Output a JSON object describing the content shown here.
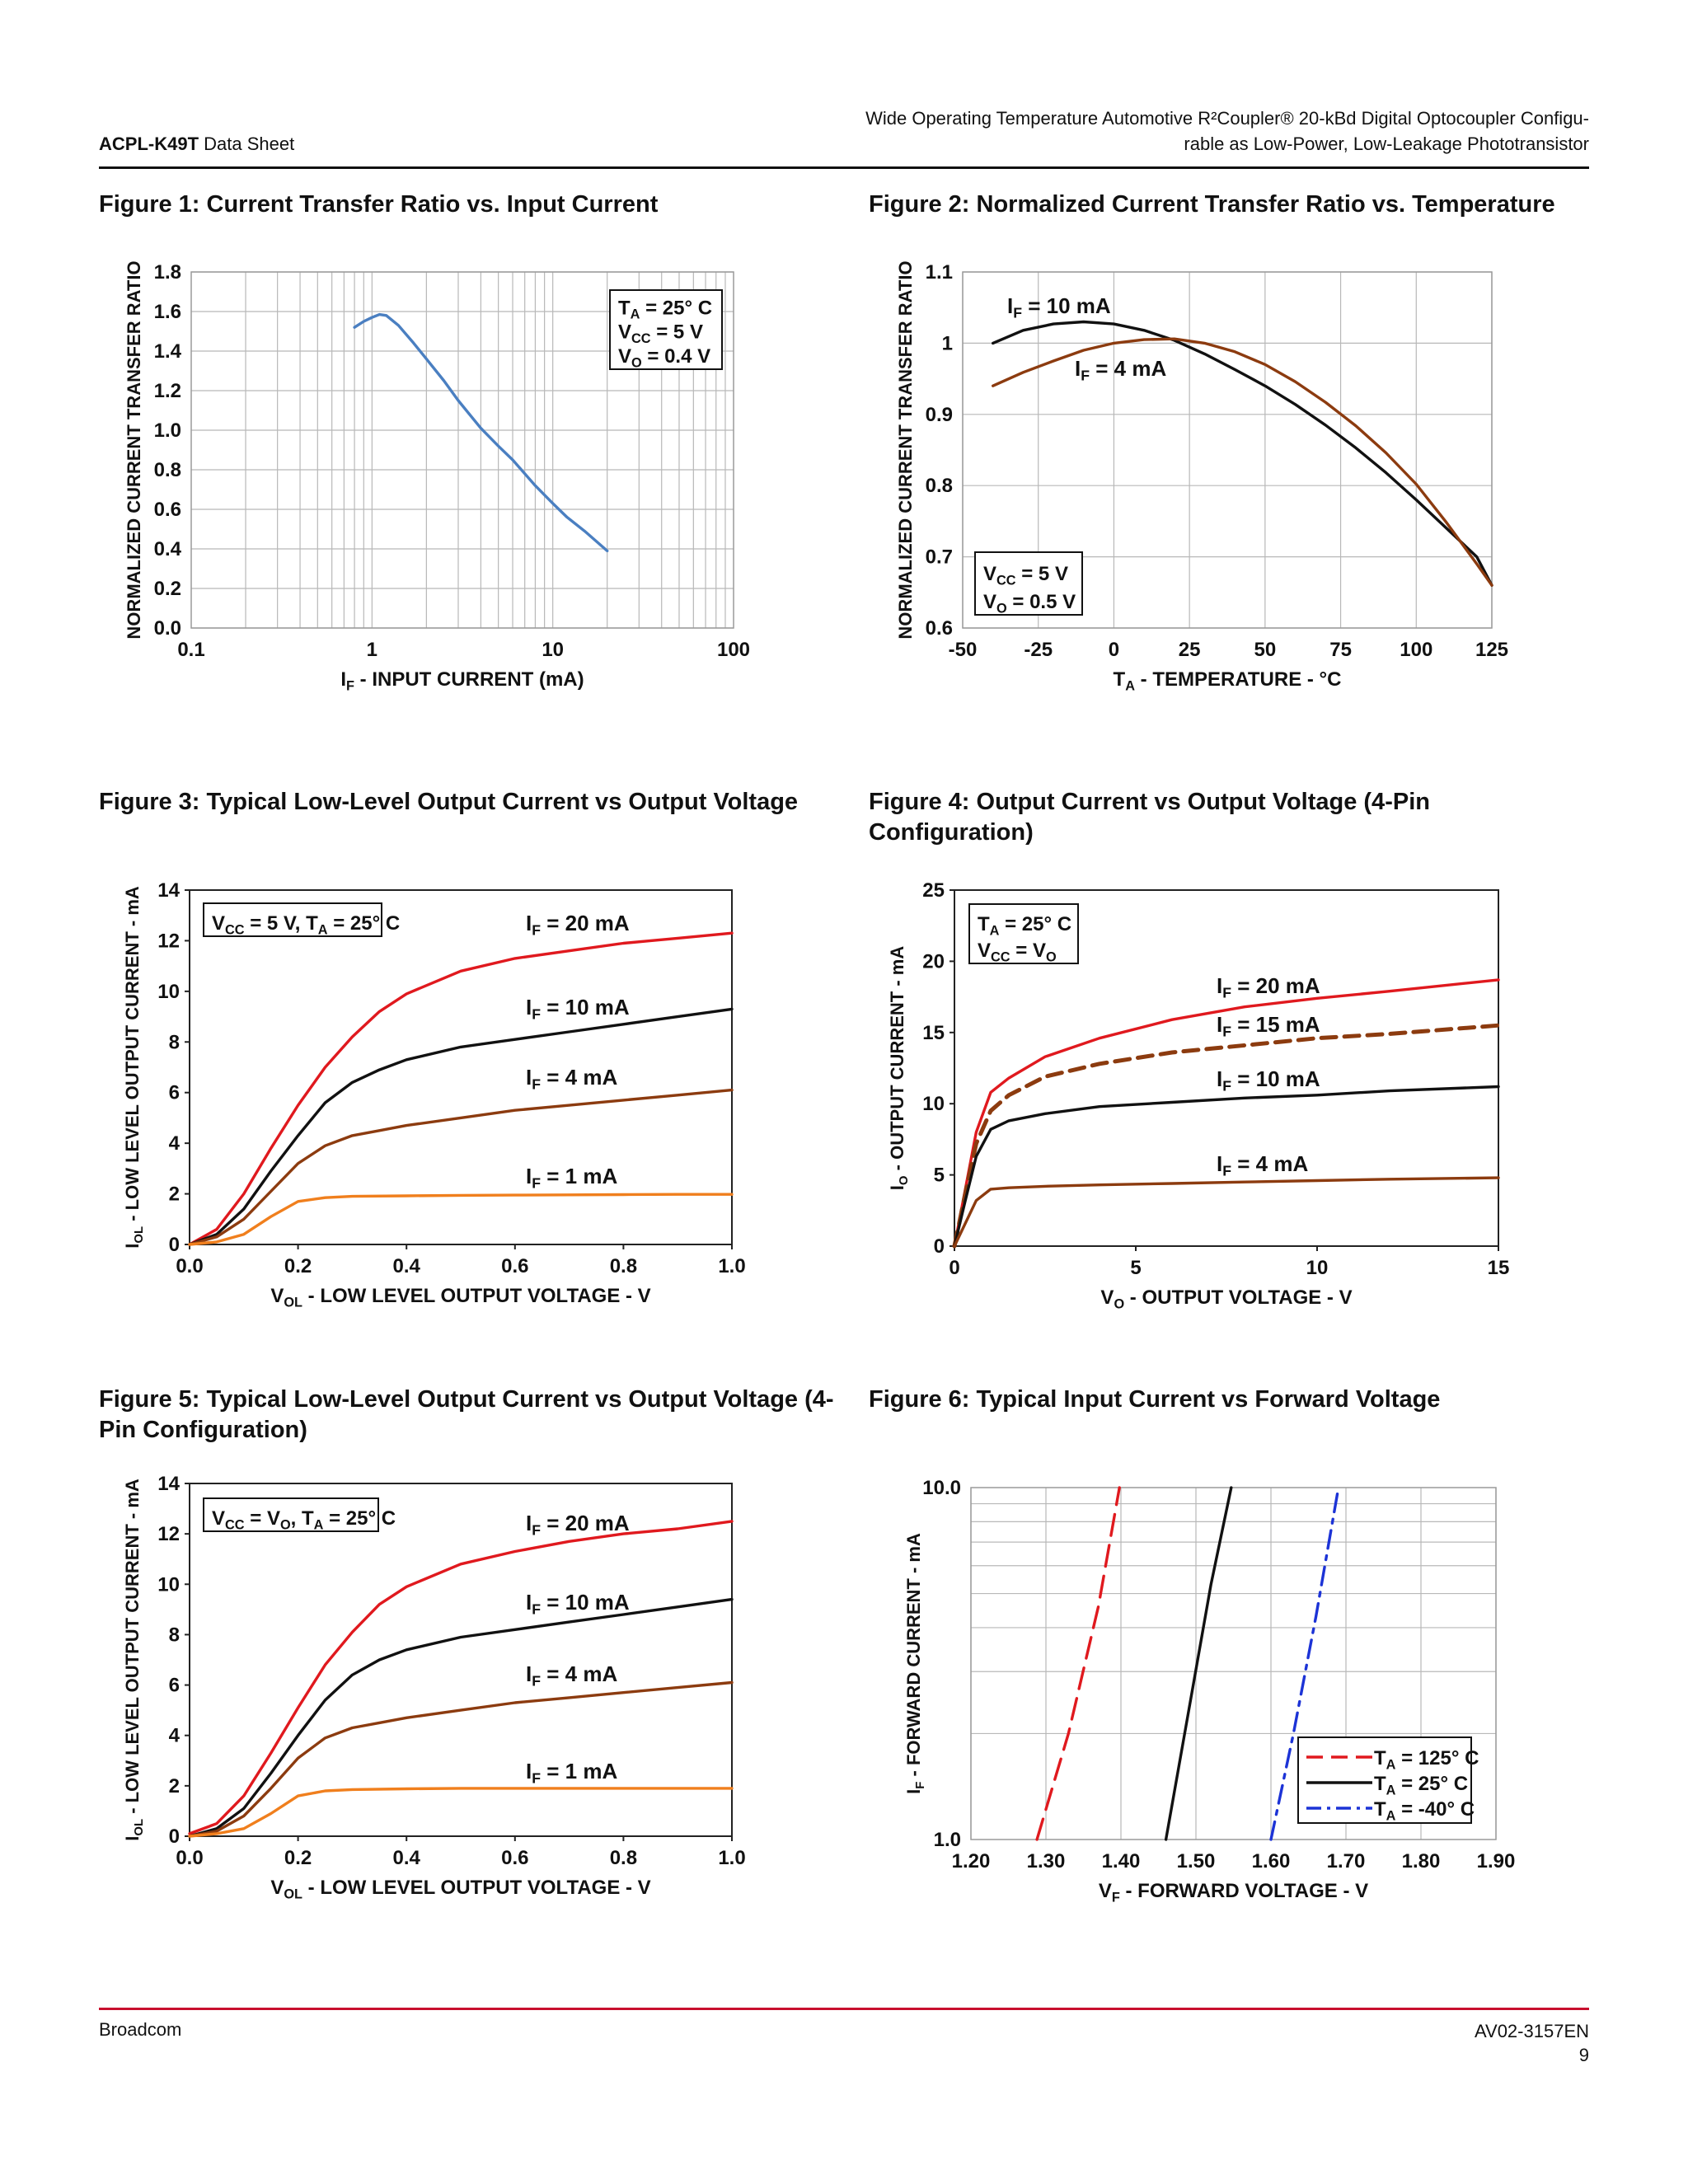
{
  "header": {
    "doc_name_bold": "ACPL-K49T",
    "doc_name_rest": " Data Sheet",
    "title_line1": "Wide Operating Temperature Automotive R²Coupler® 20-kBd Digital Optocoupler Configu-",
    "title_line2": "rable as Low-Power, Low-Leakage Phototransistor"
  },
  "footer": {
    "company": "Broadcom",
    "doc_number": "AV02-3157EN",
    "page": "9"
  },
  "colors": {
    "red": "#e0191e",
    "black": "#111111",
    "brown": "#8c3b0f",
    "orange": "#f07f1d",
    "blue": "#4a7fc1",
    "dark_blue": "#1c33d6",
    "footer_rule": "#c8102e"
  },
  "chart_data": [
    {
      "type": "line",
      "title": "Figure 1:  Current Transfer Ratio vs. Input Current",
      "xlabel": "I_F - INPUT CURRENT (mA)",
      "ylabel": "NORMALIZED CURRENT TRANSFER RATIO",
      "xscale": "log",
      "xlim": [
        0.1,
        100
      ],
      "ylim": [
        0,
        1.8
      ],
      "xticks": [
        "0.1",
        "1",
        "10",
        "100"
      ],
      "yticks": [
        "0.0",
        "0.2",
        "0.4",
        "0.6",
        "0.8",
        "1.0",
        "1.2",
        "1.4",
        "1.6",
        "1.8"
      ],
      "grid": true,
      "annotation": [
        "T_A = 25° C",
        "V_CC = 5 V",
        "V_O = 0.4 V"
      ],
      "series": [
        {
          "color": "#4a7fc1",
          "x": [
            0.8,
            0.9,
            1.0,
            1.1,
            1.2,
            1.4,
            1.7,
            2.0,
            2.5,
            3.0,
            4.0,
            5.0,
            6.0,
            8.0,
            10,
            12,
            15,
            20
          ],
          "y": [
            1.52,
            1.55,
            1.57,
            1.585,
            1.58,
            1.53,
            1.44,
            1.36,
            1.25,
            1.15,
            1.01,
            0.92,
            0.85,
            0.72,
            0.63,
            0.56,
            0.49,
            0.39
          ]
        }
      ]
    },
    {
      "type": "line",
      "title": "Figure 2:  Normalized Current Transfer Ratio vs. Temperature",
      "xlabel": "T_A - TEMPERATURE - °C",
      "ylabel": "NORMALIZED CURRENT TRANSFER RATIO",
      "xlim": [
        -50,
        125
      ],
      "ylim": [
        0.6,
        1.1
      ],
      "xticks": [
        "-50",
        "-25",
        "0",
        "25",
        "50",
        "75",
        "100",
        "125"
      ],
      "yticks": [
        "0.6",
        "0.7",
        "0.8",
        "0.9",
        "1",
        "1.1"
      ],
      "grid": true,
      "annotation": [
        "V_CC = 5 V",
        "V_O = 0.5 V"
      ],
      "series": [
        {
          "name": "I_F = 10 mA",
          "color": "#111111",
          "x": [
            -40,
            -30,
            -20,
            -10,
            0,
            10,
            20,
            30,
            40,
            50,
            60,
            70,
            80,
            90,
            100,
            110,
            120,
            125
          ],
          "y": [
            1.0,
            1.018,
            1.027,
            1.03,
            1.027,
            1.018,
            1.004,
            0.985,
            0.963,
            0.94,
            0.914,
            0.885,
            0.853,
            0.818,
            0.78,
            0.74,
            0.7,
            0.66
          ]
        },
        {
          "name": "I_F = 4 mA",
          "color": "#8c3b0f",
          "x": [
            -40,
            -30,
            -20,
            -10,
            0,
            10,
            20,
            30,
            40,
            50,
            60,
            70,
            80,
            90,
            100,
            110,
            120,
            125
          ],
          "y": [
            0.94,
            0.959,
            0.975,
            0.99,
            1.0,
            1.005,
            1.006,
            1.0,
            0.988,
            0.97,
            0.946,
            0.917,
            0.884,
            0.846,
            0.802,
            0.748,
            0.69,
            0.66
          ]
        }
      ]
    },
    {
      "type": "line",
      "title": "Figure 3:  Typical Low-Level Output Current vs Output Voltage",
      "xlabel": "V_OL - LOW LEVEL OUTPUT VOLTAGE - V",
      "ylabel": "I_OL - LOW LEVEL OUTPUT CURRENT - mA",
      "xlim": [
        0,
        1.0
      ],
      "ylim": [
        0,
        14
      ],
      "xticks": [
        "0.0",
        "0.2",
        "0.4",
        "0.6",
        "0.8",
        "1.0"
      ],
      "yticks": [
        "0",
        "2",
        "4",
        "6",
        "8",
        "10",
        "12",
        "14"
      ],
      "grid": false,
      "annotation": [
        "V_CC = 5 V, T_A = 25° C"
      ],
      "series": [
        {
          "name": "I_F = 20 mA",
          "color": "#e0191e",
          "x": [
            0,
            0.05,
            0.1,
            0.15,
            0.2,
            0.25,
            0.3,
            0.35,
            0.4,
            0.5,
            0.6,
            0.7,
            0.8,
            0.9,
            1.0
          ],
          "y": [
            0,
            0.6,
            2.0,
            3.8,
            5.5,
            7.0,
            8.2,
            9.2,
            9.9,
            10.8,
            11.3,
            11.6,
            11.9,
            12.1,
            12.3
          ]
        },
        {
          "name": "I_F = 10 mA",
          "color": "#111111",
          "x": [
            0,
            0.05,
            0.1,
            0.15,
            0.2,
            0.25,
            0.3,
            0.35,
            0.4,
            0.5,
            0.6,
            0.7,
            0.8,
            0.9,
            1.0
          ],
          "y": [
            0,
            0.4,
            1.4,
            2.9,
            4.3,
            5.6,
            6.4,
            6.9,
            7.3,
            7.8,
            8.1,
            8.4,
            8.7,
            9.0,
            9.3
          ]
        },
        {
          "name": "I_F = 4 mA",
          "color": "#8c3b0f",
          "x": [
            0,
            0.05,
            0.1,
            0.15,
            0.2,
            0.25,
            0.3,
            0.35,
            0.4,
            0.5,
            0.6,
            0.7,
            0.8,
            0.9,
            1.0
          ],
          "y": [
            0,
            0.3,
            1.0,
            2.1,
            3.2,
            3.9,
            4.3,
            4.5,
            4.7,
            5.0,
            5.3,
            5.5,
            5.7,
            5.9,
            6.1
          ]
        },
        {
          "name": "I_F = 1 mA",
          "color": "#f07f1d",
          "x": [
            0,
            0.05,
            0.1,
            0.15,
            0.2,
            0.25,
            0.3,
            0.4,
            0.5,
            0.6,
            0.7,
            0.8,
            0.9,
            1.0
          ],
          "y": [
            0,
            0.1,
            0.4,
            1.1,
            1.7,
            1.85,
            1.9,
            1.92,
            1.94,
            1.95,
            1.96,
            1.97,
            1.98,
            1.98
          ]
        }
      ]
    },
    {
      "type": "line",
      "title": "Figure 4:  Output Current vs Output Voltage (4-Pin Configuration)",
      "xlabel": "V_O - OUTPUT VOLTAGE - V",
      "ylabel": "I_O - OUTPUT CURRENT - mA",
      "xlim": [
        0,
        15
      ],
      "ylim": [
        0,
        25
      ],
      "xticks": [
        "0",
        "5",
        "10",
        "15"
      ],
      "yticks": [
        "0",
        "5",
        "10",
        "15",
        "20",
        "25"
      ],
      "grid": false,
      "annotation": [
        "T_A = 25° C",
        "V_CC = V_O"
      ],
      "series": [
        {
          "name": "I_F = 20 mA",
          "color": "#e0191e",
          "x": [
            0,
            0.3,
            0.6,
            1.0,
            1.5,
            2.5,
            4,
            6,
            8,
            10,
            12,
            15
          ],
          "y": [
            0,
            4,
            8,
            10.8,
            11.8,
            13.3,
            14.6,
            15.9,
            16.8,
            17.4,
            17.9,
            18.7
          ]
        },
        {
          "name": "I_F = 15 mA",
          "color": "#8c3b0f",
          "dashed": true,
          "x": [
            0,
            0.3,
            0.6,
            1.0,
            1.5,
            2.5,
            4,
            6,
            8,
            10,
            12,
            15
          ],
          "y": [
            0,
            3.7,
            7.2,
            9.5,
            10.6,
            11.9,
            12.8,
            13.6,
            14.1,
            14.6,
            14.9,
            15.5
          ]
        },
        {
          "name": "I_F = 10 mA",
          "color": "#111111",
          "x": [
            0,
            0.3,
            0.6,
            1.0,
            1.5,
            2.5,
            4,
            6,
            8,
            10,
            12,
            15
          ],
          "y": [
            0,
            3.2,
            6.3,
            8.2,
            8.8,
            9.3,
            9.8,
            10.1,
            10.4,
            10.6,
            10.9,
            11.2
          ]
        },
        {
          "name": "I_F = 4 mA",
          "color": "#8c3b0f",
          "x": [
            0,
            0.3,
            0.6,
            1.0,
            1.5,
            2.5,
            4,
            6,
            8,
            10,
            12,
            15
          ],
          "y": [
            0,
            1.6,
            3.2,
            4.0,
            4.1,
            4.2,
            4.3,
            4.4,
            4.5,
            4.6,
            4.7,
            4.8
          ]
        }
      ]
    },
    {
      "type": "line",
      "title": "Figure 5:  Typical Low-Level Output Current vs Output Voltage (4-Pin Configuration)",
      "xlabel": "V_OL - LOW LEVEL OUTPUT VOLTAGE - V",
      "ylabel": "I_OL - LOW LEVEL OUTPUT CURRENT - mA",
      "xlim": [
        0,
        1.0
      ],
      "ylim": [
        0,
        14
      ],
      "xticks": [
        "0.0",
        "0.2",
        "0.4",
        "0.6",
        "0.8",
        "1.0"
      ],
      "yticks": [
        "0",
        "2",
        "4",
        "6",
        "8",
        "10",
        "12",
        "14"
      ],
      "grid": false,
      "annotation": [
        "V_CC = V_O, T_A = 25° C"
      ],
      "series": [
        {
          "name": "I_F = 20 mA",
          "color": "#e0191e",
          "x": [
            0,
            0.05,
            0.1,
            0.15,
            0.2,
            0.25,
            0.3,
            0.35,
            0.4,
            0.5,
            0.6,
            0.7,
            0.8,
            0.9,
            1.0
          ],
          "y": [
            0.1,
            0.5,
            1.6,
            3.3,
            5.1,
            6.8,
            8.1,
            9.2,
            9.9,
            10.8,
            11.3,
            11.7,
            12.0,
            12.2,
            12.5
          ]
        },
        {
          "name": "I_F = 10 mA",
          "color": "#111111",
          "x": [
            0,
            0.05,
            0.1,
            0.15,
            0.2,
            0.25,
            0.3,
            0.35,
            0.4,
            0.5,
            0.6,
            0.7,
            0.8,
            0.9,
            1.0
          ],
          "y": [
            0,
            0.3,
            1.1,
            2.5,
            4.0,
            5.4,
            6.4,
            7.0,
            7.4,
            7.9,
            8.2,
            8.5,
            8.8,
            9.1,
            9.4
          ]
        },
        {
          "name": "I_F = 4 mA",
          "color": "#8c3b0f",
          "x": [
            0,
            0.05,
            0.1,
            0.15,
            0.2,
            0.25,
            0.3,
            0.35,
            0.4,
            0.5,
            0.6,
            0.7,
            0.8,
            0.9,
            1.0
          ],
          "y": [
            0,
            0.2,
            0.8,
            1.9,
            3.1,
            3.9,
            4.3,
            4.5,
            4.7,
            5.0,
            5.3,
            5.5,
            5.7,
            5.9,
            6.1
          ]
        },
        {
          "name": "I_F = 1 mA",
          "color": "#f07f1d",
          "x": [
            0,
            0.05,
            0.1,
            0.15,
            0.2,
            0.25,
            0.3,
            0.4,
            0.5,
            0.6,
            0.7,
            0.8,
            0.9,
            1.0
          ],
          "y": [
            0,
            0.1,
            0.3,
            0.9,
            1.6,
            1.8,
            1.85,
            1.88,
            1.9,
            1.9,
            1.9,
            1.9,
            1.9,
            1.9
          ]
        }
      ]
    },
    {
      "type": "line",
      "title": "Figure 6:  Typical Input Current vs Forward Voltage",
      "xlabel": "V_F - FORWARD VOLTAGE - V",
      "ylabel": "I_F - FORWARD CURRENT - mA",
      "yscale": "log",
      "xlim": [
        1.2,
        1.9
      ],
      "ylim": [
        1.0,
        10.0
      ],
      "xticks": [
        "1.20",
        "1.30",
        "1.40",
        "1.50",
        "1.60",
        "1.70",
        "1.80",
        "1.90"
      ],
      "yticks": [
        "1.0",
        "10.0"
      ],
      "grid": true,
      "legend": "bottom-right",
      "series": [
        {
          "name": "T_A = 125° C",
          "color": "#e0191e",
          "dashed": true,
          "x": [
            1.288,
            1.33,
            1.37,
            1.398
          ],
          "y": [
            1.0,
            2.0,
            4.6,
            10.0
          ]
        },
        {
          "name": "T_A = 25° C",
          "color": "#111111",
          "x": [
            1.46,
            1.49,
            1.52,
            1.547
          ],
          "y": [
            1.0,
            2.3,
            5.3,
            10.0
          ]
        },
        {
          "name": "T_A = -40° C",
          "color": "#1c33d6",
          "dashdot": true,
          "x": [
            1.6,
            1.63,
            1.66,
            1.69
          ],
          "y": [
            1.0,
            2.0,
            4.3,
            10.0
          ]
        }
      ]
    }
  ]
}
